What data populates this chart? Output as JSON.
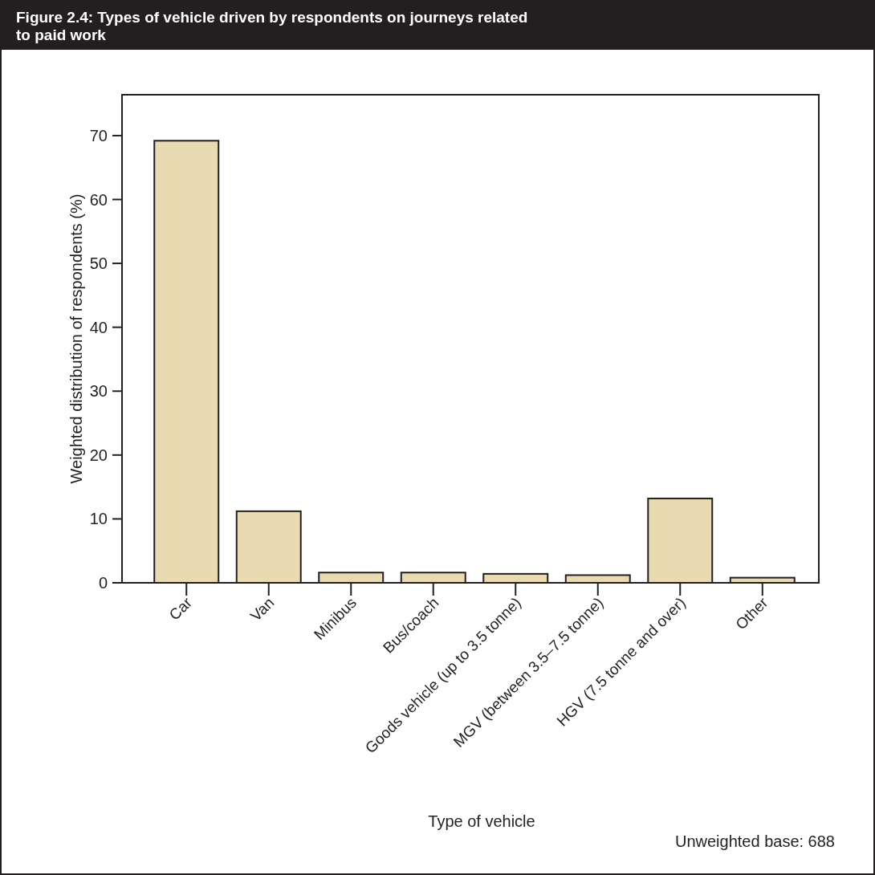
{
  "chart_data": {
    "type": "bar",
    "title": "Figure 2.4:  Types of vehicle driven by respondents on journeys related to paid work",
    "categories": [
      "Car",
      "Van",
      "Minibus",
      "Bus/coach",
      "Goods vehicle (up to 3.5 tonne)",
      "MGV (between 3.5–7.5 tonne)",
      "HGV (7.5 tonne and over)",
      "Other"
    ],
    "values": [
      69.2,
      11.2,
      1.6,
      1.6,
      1.4,
      1.2,
      13.2,
      0.8
    ],
    "color": "#e8dbb2",
    "xlabel": "Type of vehicle",
    "ylabel": "Weighted distribution of respondents (%)",
    "ylim": [
      0,
      76.4
    ],
    "yticks": [
      0,
      10,
      20,
      30,
      40,
      50,
      60,
      70
    ],
    "annotations": [
      "Unweighted base: 688"
    ]
  }
}
